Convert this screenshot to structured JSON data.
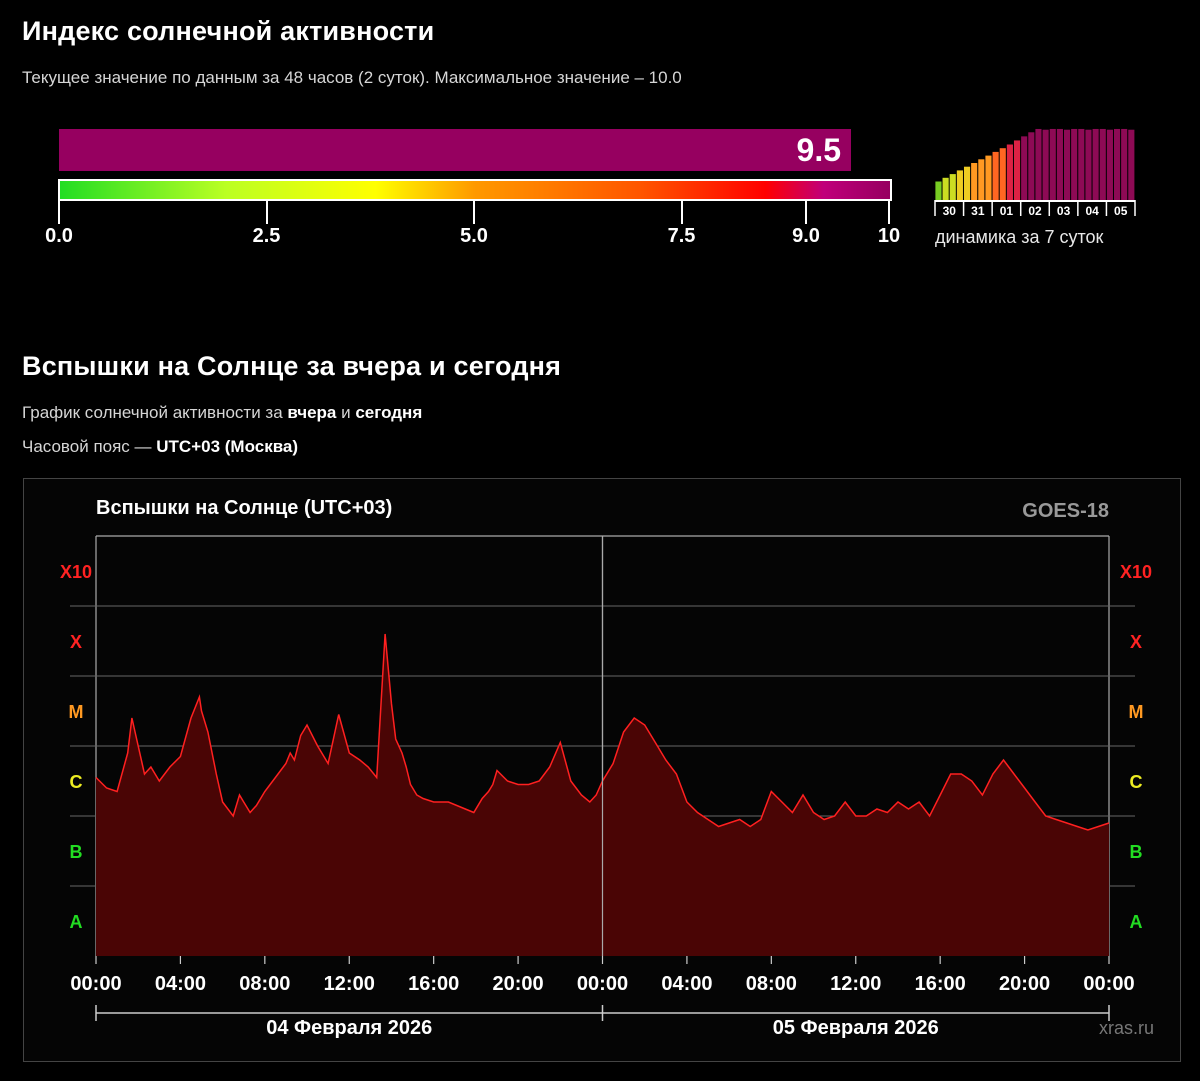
{
  "index_section": {
    "title": "Индекс солнечной активности",
    "subtitle": "Текущее значение по данным за 48 часов (2 суток). Максимальное значение – 10.0",
    "current_value": "9.5",
    "current_fraction": 0.95,
    "bar_color": "#960060",
    "scale_ticks": [
      "0.0",
      "2.5",
      "5.0",
      "7.5",
      "9.0",
      "10"
    ],
    "mini_days": [
      "30",
      "31",
      "01",
      "02",
      "03",
      "04",
      "05"
    ],
    "mini_caption": "динамика за 7 суток"
  },
  "flares_section": {
    "title": "Вспышки на Солнце за вчера и сегодня",
    "line1_prefix": "График солнечной активности за ",
    "line1_b1": "вчера",
    "line1_mid": " и ",
    "line1_b2": "сегодня",
    "line2_prefix": "Часовой пояс — ",
    "line2_bold": "UTC+03 (Москва)"
  },
  "chart_data": {
    "type": "area",
    "title": "Вспышки на Солнце (UTC+03)",
    "source": "GOES-18",
    "watermark": "xras.ru",
    "x_tick_labels": [
      "00:00",
      "04:00",
      "08:00",
      "12:00",
      "16:00",
      "20:00",
      "00:00",
      "04:00",
      "08:00",
      "12:00",
      "16:00",
      "20:00",
      "00:00"
    ],
    "x_range_hours": [
      0,
      48
    ],
    "date_labels": [
      "04 Февраля 2026",
      "05 Февраля 2026"
    ],
    "y_classes": [
      "A",
      "B",
      "C",
      "M",
      "X",
      "X10"
    ],
    "y_class_colors": {
      "A": "#22dd22",
      "B": "#22dd22",
      "C": "#eeee22",
      "M": "#ff9922",
      "X": "#ff2222",
      "X10": "#ff2222"
    },
    "y_range_level": [
      0,
      6
    ],
    "line_color": "#ff2020",
    "fill_color": "#4a0505",
    "grid": true,
    "series": [
      {
        "x": [
          0,
          0.5,
          1,
          1.5,
          1.7,
          2.0,
          2.3,
          2.6,
          3,
          3.5,
          4,
          4.5,
          4.9,
          5.0,
          5.3,
          5.7,
          6,
          6.5,
          6.8,
          7,
          7.3,
          7.6,
          8,
          8.5,
          9,
          9.2,
          9.4,
          9.7,
          10,
          10.5,
          11,
          11.5,
          12,
          12.5,
          12.9,
          13.3,
          13.7,
          14,
          14.2,
          14.5,
          14.7,
          14.9,
          15.2,
          15.5,
          16,
          16.7,
          17.5,
          17.9,
          18.3,
          18.6,
          18.8,
          19,
          19.5,
          20,
          20.5,
          21,
          21.5,
          22,
          22.5,
          23,
          23.4,
          23.7,
          24,
          24.5,
          25,
          25.5,
          26,
          26.5,
          27,
          27.5,
          28,
          28.5,
          29,
          29.5,
          30,
          30.5,
          31,
          31.5,
          32,
          32.5,
          33,
          33.5,
          34,
          34.5,
          35,
          35.5,
          36,
          36.5,
          37,
          37.5,
          38,
          38.5,
          39,
          39.5,
          40,
          40.5,
          41,
          41.5,
          42,
          42.5,
          43,
          43.5,
          44,
          44.5,
          45,
          45.5,
          46,
          46.5,
          47,
          47.5,
          48
        ],
        "y": [
          2.55,
          2.4,
          2.35,
          2.9,
          3.4,
          3.0,
          2.6,
          2.7,
          2.5,
          2.7,
          2.85,
          3.4,
          3.7,
          3.5,
          3.2,
          2.6,
          2.2,
          2.0,
          2.3,
          2.2,
          2.05,
          2.15,
          2.35,
          2.55,
          2.75,
          2.9,
          2.8,
          3.15,
          3.3,
          3.0,
          2.75,
          3.45,
          2.9,
          2.8,
          2.7,
          2.55,
          4.6,
          3.6,
          3.1,
          2.9,
          2.7,
          2.45,
          2.3,
          2.25,
          2.2,
          2.2,
          2.1,
          2.05,
          2.25,
          2.35,
          2.45,
          2.65,
          2.5,
          2.45,
          2.45,
          2.5,
          2.7,
          3.05,
          2.5,
          2.3,
          2.2,
          2.3,
          2.5,
          2.75,
          3.2,
          3.4,
          3.3,
          3.05,
          2.8,
          2.6,
          2.2,
          2.05,
          1.95,
          1.85,
          1.9,
          1.95,
          1.85,
          1.95,
          2.35,
          2.2,
          2.05,
          2.3,
          2.05,
          1.95,
          2.0,
          2.2,
          2.0,
          2.0,
          2.1,
          2.05,
          2.2,
          2.1,
          2.2,
          2.0,
          2.3,
          2.6,
          2.6,
          2.5,
          2.3,
          2.6,
          2.8,
          2.6,
          2.4,
          2.2,
          2.0,
          1.95,
          1.9,
          1.85,
          1.8,
          1.85,
          1.9
        ]
      }
    ]
  }
}
